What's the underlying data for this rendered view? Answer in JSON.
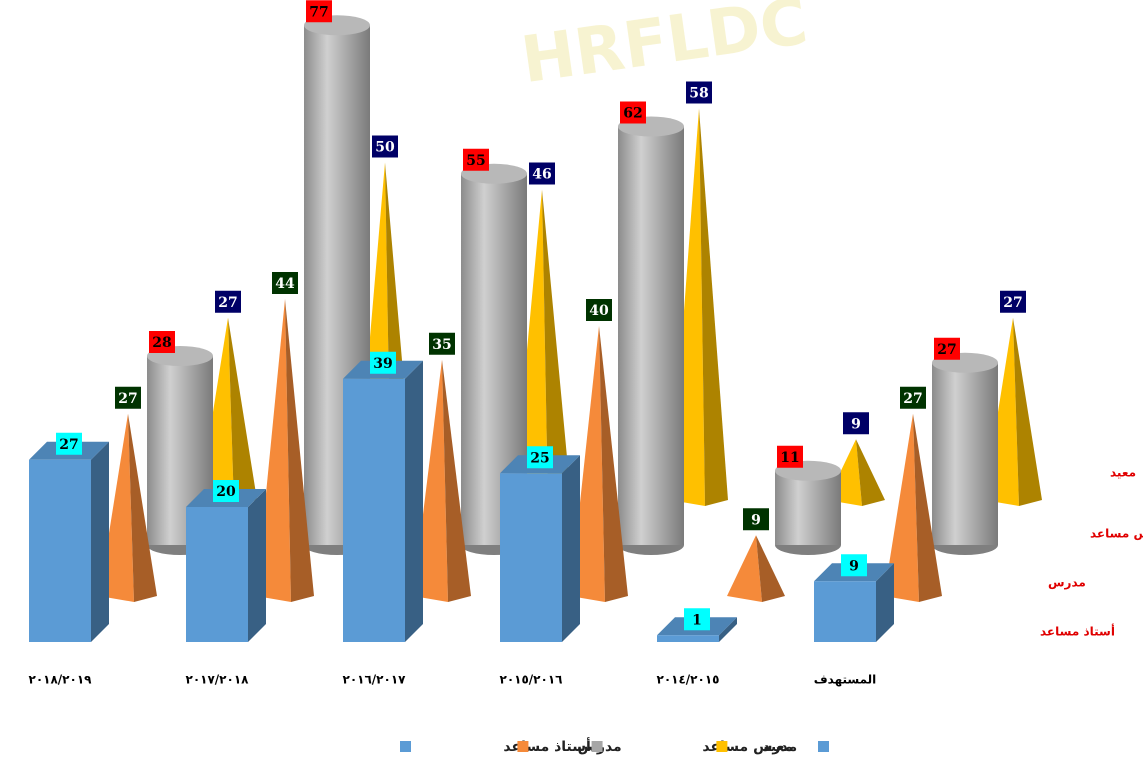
{
  "chart_data": {
    "type": "bar3d",
    "watermark": "HRFLDC",
    "categories": [
      "٢٠١٨/٢٠١٩",
      "٢٠١٧/٢٠١٨",
      "٢٠١٦/٢٠١٧",
      "٢٠١٥/٢٠١٦",
      "٢٠١٤/٢٠١٥",
      "المستهدف"
    ],
    "series": [
      {
        "name": "أستاذ مساعد",
        "color": "#5b9bd5",
        "shape": "box",
        "label_color": "#00ffff",
        "label_text_color": "#000000",
        "values": [
          27,
          20,
          39,
          25,
          1,
          9
        ]
      },
      {
        "name": "مدرس",
        "color": "#f58a3a",
        "shape": "pyramid",
        "label_color": "#003300",
        "label_text_color": "#ffffff",
        "values": [
          27,
          44,
          35,
          40,
          9,
          27
        ]
      },
      {
        "name": "مدرس مساعد",
        "color": "#a6a6a6",
        "shape": "cylinder",
        "label_color": "#ff0000",
        "label_text_color": "#000000",
        "values": [
          28,
          77,
          55,
          62,
          11,
          27
        ]
      },
      {
        "name": "معيد",
        "color": "#ffc000",
        "shape": "pyramid",
        "label_color": "#000066",
        "label_text_color": "#ffffff",
        "values": [
          27,
          50,
          46,
          58,
          9,
          27
        ]
      }
    ]
  }
}
